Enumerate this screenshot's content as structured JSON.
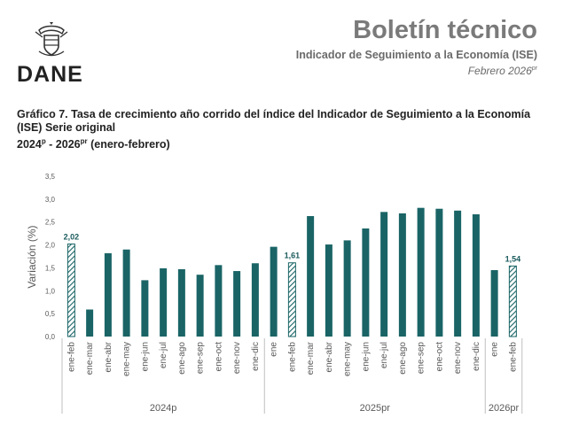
{
  "header": {
    "logo_text": "DANE",
    "title": "Boletín técnico",
    "subtitle": "Indicador de Seguimiento a la Economía (ISE)",
    "date_main": "Febrero 2026",
    "date_sup": "pr"
  },
  "caption": {
    "line1": "Gráfico 7. Tasa de crecimiento año corrido del índice del Indicador de Seguimiento a la Economía",
    "line2": "(ISE) Serie original",
    "line3_a": "2024",
    "line3_a_sup": "p",
    "line3_b": " - 2026",
    "line3_b_sup": "pr",
    "line3_c": " (enero-febrero)"
  },
  "colors": {
    "bar": "#1a6466",
    "hatch_line": "#1a6466",
    "axis_text": "#595959",
    "label_text": "#1a5a5c",
    "separator": "#bfbfbf"
  },
  "chart_data": {
    "type": "bar",
    "ylabel": "Variación (%)",
    "ylim": [
      0,
      3.5
    ],
    "yticks": [
      "0,0",
      "0,5",
      "1,0",
      "1,5",
      "2,0",
      "2,5",
      "3,0",
      "3,5"
    ],
    "grid": false,
    "categories": [
      "ene-feb",
      "ene-mar",
      "ene-abr",
      "ene-may",
      "ene-jun",
      "ene-jul",
      "ene-ago",
      "ene-sep",
      "ene-oct",
      "ene-nov",
      "ene-dic",
      "ene",
      "ene-feb",
      "ene-mar",
      "ene-abr",
      "ene-may",
      "ene-jun",
      "ene-jul",
      "ene-ago",
      "ene-sep",
      "ene-oct",
      "ene-nov",
      "ene-dic",
      "ene",
      "ene-feb"
    ],
    "values": [
      2.02,
      0.59,
      1.82,
      1.9,
      1.23,
      1.49,
      1.47,
      1.35,
      1.56,
      1.43,
      1.6,
      1.96,
      1.61,
      2.63,
      2.01,
      2.1,
      2.36,
      2.72,
      2.69,
      2.81,
      2.79,
      2.75,
      2.67,
      1.45,
      1.54
    ],
    "highlighted": [
      true,
      false,
      false,
      false,
      false,
      false,
      false,
      false,
      false,
      false,
      false,
      false,
      true,
      false,
      false,
      false,
      false,
      false,
      false,
      false,
      false,
      false,
      false,
      false,
      true
    ],
    "data_labels": [
      "2,02",
      "",
      "",
      "",
      "",
      "",
      "",
      "",
      "",
      "",
      "",
      "",
      "1,61",
      "",
      "",
      "",
      "",
      "",
      "",
      "",
      "",
      "",
      "",
      "",
      "1,54"
    ],
    "groups": [
      {
        "label": "2024p",
        "count": 11
      },
      {
        "label": "2025pr",
        "count": 12
      },
      {
        "label": "2026pr",
        "count": 2
      }
    ]
  }
}
